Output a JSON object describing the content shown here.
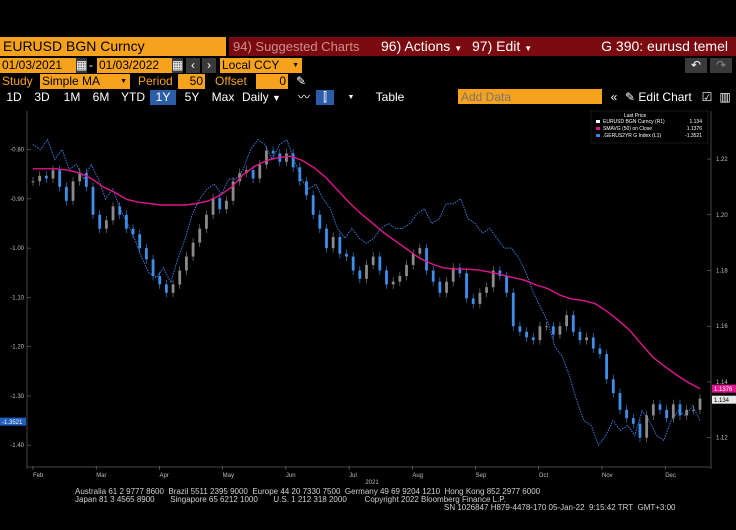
{
  "header": {
    "ticker": "EURUSD BGN Curncy",
    "suggested": "94) Suggested Charts",
    "actions": "96) Actions",
    "edit": "97) Edit",
    "title": "G 390: eurusd temel"
  },
  "controls": {
    "start_date": "01/03/2021",
    "end_date": "01/03/2022",
    "currency": "Local CCY",
    "study_label": "Study",
    "study_value": "Simple MA",
    "period_label": "Period",
    "period_value": "50",
    "offset_label": "Offset",
    "offset_value": "0",
    "ranges": [
      "1D",
      "3D",
      "1M",
      "6M",
      "YTD",
      "1Y",
      "5Y",
      "Max"
    ],
    "selected_range": "1Y",
    "frequency": "Daily",
    "table": "Table",
    "add_data_placeholder": "Add Data",
    "edit_chart": "Edit Chart"
  },
  "colors": {
    "candles": "#3f8fe8",
    "ma": "#e0168f",
    "rate": "#3f7fe8",
    "accent": "#f7a21c",
    "menu": "#7a0a10"
  },
  "chart_data": {
    "type": "line",
    "x_labels": [
      "Feb",
      "Mar",
      "Apr",
      "May",
      "Jun",
      "Jul",
      "Aug",
      "Sep",
      "Oct",
      "Nov",
      "Dec"
    ],
    "year_label": "2021",
    "left_axis": {
      "ticks": [
        "-0.80",
        "-0.90",
        "-1.00",
        "-1.10",
        "-1.20",
        "-1.30",
        "-1.40"
      ],
      "range": [
        -1.43,
        -0.74
      ]
    },
    "right_axis": {
      "ticks": [
        "1.22",
        "1.20",
        "1.18",
        "1.16",
        "1.14",
        "1.12"
      ],
      "range": [
        1.112,
        1.234
      ]
    },
    "legend": {
      "title": "Last Price",
      "items": [
        {
          "name": "EURUSD BGN Curncy (R1)",
          "value": "1.134",
          "color": "#ffffff"
        },
        {
          "name": "SMAVG (50) on Close",
          "value": "1.1376",
          "color": "#e0168f"
        },
        {
          "name": ".GERUS2YR G Index (L1)",
          "value": "-1.3521",
          "color": "#3f7fe8"
        }
      ]
    },
    "last_values": {
      "eurusd": "1.134",
      "smavg": "1.1376",
      "gerus2yr": "-1.3521"
    },
    "series": [
      {
        "name": "EURUSD BGN Curncy",
        "axis": "right",
        "values": [
          1.212,
          1.214,
          1.213,
          1.216,
          1.21,
          1.205,
          1.212,
          1.215,
          1.21,
          1.2,
          1.195,
          1.198,
          1.203,
          1.2,
          1.195,
          1.193,
          1.188,
          1.184,
          1.178,
          1.175,
          1.172,
          1.175,
          1.18,
          1.185,
          1.19,
          1.195,
          1.2,
          1.206,
          1.202,
          1.205,
          1.212,
          1.215,
          1.216,
          1.213,
          1.218,
          1.223,
          1.222,
          1.219,
          1.222,
          1.217,
          1.212,
          1.207,
          1.2,
          1.195,
          1.188,
          1.192,
          1.186,
          1.185,
          1.18,
          1.177,
          1.182,
          1.185,
          1.18,
          1.175,
          1.176,
          1.178,
          1.182,
          1.186,
          1.188,
          1.18,
          1.176,
          1.172,
          1.176,
          1.181,
          1.179,
          1.17,
          1.168,
          1.172,
          1.174,
          1.18,
          1.178,
          1.172,
          1.16,
          1.158,
          1.156,
          1.155,
          1.16,
          1.16,
          1.157,
          1.16,
          1.164,
          1.158,
          1.155,
          1.156,
          1.152,
          1.15,
          1.141,
          1.136,
          1.13,
          1.127,
          1.125,
          1.12,
          1.128,
          1.132,
          1.13,
          1.127,
          1.132,
          1.128,
          1.13,
          1.13,
          1.134
        ]
      },
      {
        "name": "SMAVG (50) on Close",
        "axis": "right",
        "values": [
          1.2165,
          1.2165,
          1.2165,
          1.216,
          1.215,
          1.213,
          1.21,
          1.208,
          1.2055,
          1.2045,
          1.204,
          1.2035,
          1.2035,
          1.2035,
          1.204,
          1.205,
          1.207,
          1.21,
          1.2145,
          1.2175,
          1.2195,
          1.2205,
          1.221,
          1.2195,
          1.217,
          1.2135,
          1.209,
          1.2045,
          1.2005,
          1.197,
          1.1935,
          1.1905,
          1.1875,
          1.1845,
          1.1825,
          1.181,
          1.1805,
          1.1805,
          1.1802,
          1.1795,
          1.1785,
          1.1775,
          1.1765,
          1.1748,
          1.1735,
          1.1712,
          1.1698,
          1.1692,
          1.1682,
          1.1655,
          1.1622,
          1.1585,
          1.1535,
          1.1488,
          1.1455,
          1.1425,
          1.1398,
          1.1376
        ]
      },
      {
        "name": ".GERUS2YR G Index",
        "axis": "left",
        "values": [
          -0.79,
          -0.8,
          -0.78,
          -0.82,
          -0.8,
          -0.84,
          -0.83,
          -0.86,
          -0.83,
          -0.86,
          -0.9,
          -0.88,
          -0.92,
          -0.95,
          -0.98,
          -1.02,
          -1.05,
          -1.06,
          -1.04,
          -1.07,
          -1.02,
          -0.98,
          -0.93,
          -0.9,
          -0.88,
          -0.87,
          -0.89,
          -0.86,
          -0.86,
          -0.84,
          -0.8,
          -0.78,
          -0.79,
          -0.82,
          -0.79,
          -0.78,
          -0.82,
          -0.86,
          -0.88,
          -0.87,
          -0.9,
          -0.92,
          -0.96,
          -0.98,
          -0.96,
          -0.98,
          -0.99,
          -0.98,
          -0.96,
          -0.95,
          -0.96,
          -0.96,
          -0.95,
          -0.93,
          -0.92,
          -0.95,
          -0.94,
          -0.91,
          -0.91,
          -0.9,
          -0.94,
          -0.95,
          -0.97,
          -0.96,
          -0.98,
          -1.0,
          -1.0,
          -1.02,
          -1.05,
          -1.09,
          -1.12,
          -1.15,
          -1.2,
          -1.22,
          -1.26,
          -1.31,
          -1.35,
          -1.36,
          -1.4,
          -1.38,
          -1.35,
          -1.37,
          -1.36,
          -1.38,
          -1.33,
          -1.35,
          -1.38,
          -1.39,
          -1.35,
          -1.33,
          -1.34,
          -1.32,
          -1.35
        ]
      }
    ]
  },
  "footer": {
    "line1": "Australia 61 2 9777 8600  Brazil 5511 2395 9000  Europe 44 20 7330 7500  Germany 49 69 9204 1210  Hong Kong 852 2977 6000",
    "line2": "Japan 81 3 4565 8900       Singapore 65 6212 1000       U.S. 1 212 318 2000        Copyright 2022 Bloomberg Finance L.P.",
    "line3": "SN 1026847 H879-4478-170 05-Jan-22  9:15:42 TRT  GMT+3:00"
  }
}
